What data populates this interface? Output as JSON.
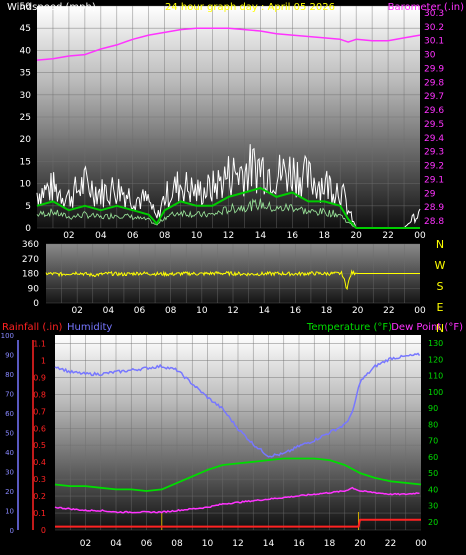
{
  "header": {
    "wind_title": "Windspeed (mph)",
    "date_title": "24 hour graph day : April 05 2026",
    "baro_title": "Barometer (.in)"
  },
  "lower_header": {
    "rain_title": "Rainfall (.in)",
    "humidity_title": "Humidity",
    "temp_title": "Temperature (°F)",
    "dew_title": "Dew Point (°F)"
  },
  "colors": {
    "wind": "#ffffff",
    "avg_wind": "#00cc00",
    "barometer": "#ff33ff",
    "direction": "#ffff00",
    "humidity": "#7777ff",
    "temperature": "#00dd00",
    "dewpoint": "#ff33ff",
    "rain": "#ff2222",
    "rain_rate": "#ccaa00"
  },
  "chart_data": [
    {
      "type": "line",
      "title": "24 hour graph day : April 05 2026",
      "x_ticks": [
        "02",
        "04",
        "06",
        "08",
        "10",
        "12",
        "14",
        "16",
        "18",
        "20",
        "22",
        "00"
      ],
      "y_left": {
        "label": "Windspeed (mph)",
        "ticks": [
          "0",
          "5",
          "10",
          "15",
          "20",
          "25",
          "30",
          "35",
          "40",
          "45",
          "50"
        ],
        "range": [
          0,
          50
        ]
      },
      "y_right": {
        "label": "Barometer (.in)",
        "ticks": [
          "28.8",
          "28.9",
          "29",
          "29.1",
          "29.2",
          "29.3",
          "29.4",
          "29.5",
          "29.6",
          "29.7",
          "29.8",
          "29.9",
          "30",
          "30.1",
          "30.2",
          "30.3"
        ],
        "range": [
          28.75,
          30.35
        ]
      },
      "series": [
        {
          "name": "Barometer (.in)",
          "x": [
            0,
            1,
            2,
            3,
            4,
            5,
            6,
            7,
            8,
            9,
            10,
            11,
            12,
            13,
            14,
            15,
            16,
            17,
            18,
            19,
            19.5,
            20,
            21,
            22,
            23,
            24
          ],
          "values": [
            29.96,
            29.97,
            29.99,
            30.0,
            30.04,
            30.07,
            30.11,
            30.14,
            30.16,
            30.18,
            30.19,
            30.19,
            30.19,
            30.18,
            30.17,
            30.15,
            30.14,
            30.13,
            30.12,
            30.11,
            30.09,
            30.11,
            30.1,
            30.1,
            30.12,
            30.14
          ]
        },
        {
          "name": "Windspeed (mph)",
          "x": [
            0,
            1,
            2,
            3,
            4,
            5,
            6,
            7,
            7.5,
            8,
            9,
            10,
            11,
            12,
            13,
            14,
            15,
            16,
            17,
            18,
            19,
            19.5,
            20,
            21,
            22,
            23,
            23.5,
            24
          ],
          "values": [
            8,
            9,
            7,
            10,
            8,
            9,
            7,
            6,
            2,
            7,
            10,
            8,
            9,
            12,
            13,
            14,
            12,
            13,
            11,
            10,
            9,
            4,
            0,
            0,
            0,
            0,
            2,
            3
          ]
        },
        {
          "name": "Average windspeed",
          "x": [
            0,
            1,
            2,
            3,
            4,
            5,
            6,
            7,
            7.5,
            8,
            9,
            10,
            11,
            12,
            13,
            14,
            15,
            16,
            17,
            18,
            19,
            19.5,
            20,
            21,
            22,
            23,
            24
          ],
          "values": [
            5,
            6,
            4,
            5,
            4,
            5,
            4,
            3,
            1,
            4,
            6,
            5,
            5,
            7,
            8,
            9,
            7,
            8,
            6,
            6,
            5,
            2,
            0,
            0,
            0,
            0,
            0
          ]
        }
      ]
    },
    {
      "type": "line",
      "x_ticks": [
        "02",
        "04",
        "06",
        "08",
        "10",
        "12",
        "14",
        "16",
        "18",
        "20",
        "22",
        "00"
      ],
      "y_left": {
        "ticks": [
          "0",
          "90",
          "180",
          "270",
          "360"
        ],
        "range": [
          0,
          360
        ]
      },
      "y_right": {
        "ticks": [
          "N",
          "W",
          "S",
          "E",
          "N"
        ]
      },
      "series": [
        {
          "name": "Wind direction",
          "x": [
            0,
            1,
            2,
            3,
            4,
            5,
            6,
            7,
            8,
            9,
            10,
            11,
            12,
            13,
            14,
            15,
            16,
            17,
            18,
            19,
            19.3,
            19.6,
            20,
            21,
            22,
            23,
            24
          ],
          "values": [
            180,
            175,
            185,
            170,
            180,
            175,
            182,
            178,
            176,
            180,
            178,
            182,
            180,
            176,
            178,
            180,
            177,
            181,
            179,
            180,
            90,
            185,
            180,
            180,
            180,
            180,
            180
          ]
        }
      ]
    },
    {
      "type": "line",
      "x_ticks": [
        "02",
        "04",
        "06",
        "08",
        "10",
        "12",
        "14",
        "16",
        "18",
        "20",
        "22",
        "00"
      ],
      "y_left_outer": {
        "label": "Humidity",
        "ticks": [
          "0",
          "10",
          "20",
          "30",
          "40",
          "50",
          "60",
          "70",
          "80",
          "90",
          "100"
        ],
        "range": [
          0,
          100
        ]
      },
      "y_left_inner": {
        "label": "Rainfall (.in)",
        "ticks": [
          "0",
          "0.1",
          "0.2",
          "0.3",
          "0.4",
          "0.5",
          "0.6",
          "0.7",
          "0.8",
          "0.9",
          "1",
          "1.1"
        ],
        "range": [
          0,
          1.15
        ]
      },
      "y_right": {
        "label": "Temperature (°F)",
        "ticks": [
          "20",
          "30",
          "40",
          "50",
          "60",
          "70",
          "80",
          "90",
          "100",
          "110",
          "120",
          "130"
        ],
        "range": [
          15,
          135
        ]
      },
      "series": [
        {
          "name": "Humidity",
          "x": [
            0,
            1,
            2,
            3,
            4,
            5,
            6,
            7,
            8,
            9,
            10,
            11,
            12,
            13,
            14,
            15,
            16,
            17,
            18,
            19,
            19.5,
            20,
            21,
            22,
            23,
            24
          ],
          "values": [
            84,
            81,
            80,
            80,
            81,
            82,
            83,
            84,
            82,
            75,
            68,
            62,
            52,
            44,
            38,
            39,
            43,
            46,
            50,
            54,
            60,
            76,
            84,
            88,
            89,
            90
          ]
        },
        {
          "name": "Temperature (°F)",
          "x": [
            0,
            1,
            2,
            3,
            4,
            5,
            6,
            7,
            8,
            9,
            10,
            11,
            12,
            13,
            14,
            15,
            16,
            17,
            18,
            19,
            20,
            21,
            22,
            23,
            24
          ],
          "values": [
            43,
            42,
            42,
            41,
            40,
            40,
            39,
            40,
            44,
            48,
            52,
            55,
            56,
            57,
            58,
            59,
            59,
            59,
            58,
            55,
            50,
            47,
            45,
            44,
            43
          ]
        },
        {
          "name": "Dew Point (°F)",
          "x": [
            0,
            1,
            2,
            3,
            4,
            5,
            6,
            7,
            8,
            9,
            10,
            11,
            12,
            13,
            14,
            15,
            16,
            17,
            18,
            19,
            19.5,
            20,
            21,
            22,
            23,
            24
          ],
          "values": [
            29,
            28,
            27,
            27,
            26,
            26,
            26,
            26,
            27,
            28,
            29,
            31,
            32,
            33,
            34,
            35,
            36,
            37,
            38,
            39,
            41,
            39,
            38,
            37,
            37,
            38
          ]
        },
        {
          "name": "Rainfall (.in)",
          "x": [
            0,
            6.9,
            7,
            19.9,
            20,
            24
          ],
          "values": [
            0.02,
            0.02,
            0.02,
            0.02,
            0.06,
            0.06
          ]
        }
      ]
    }
  ]
}
